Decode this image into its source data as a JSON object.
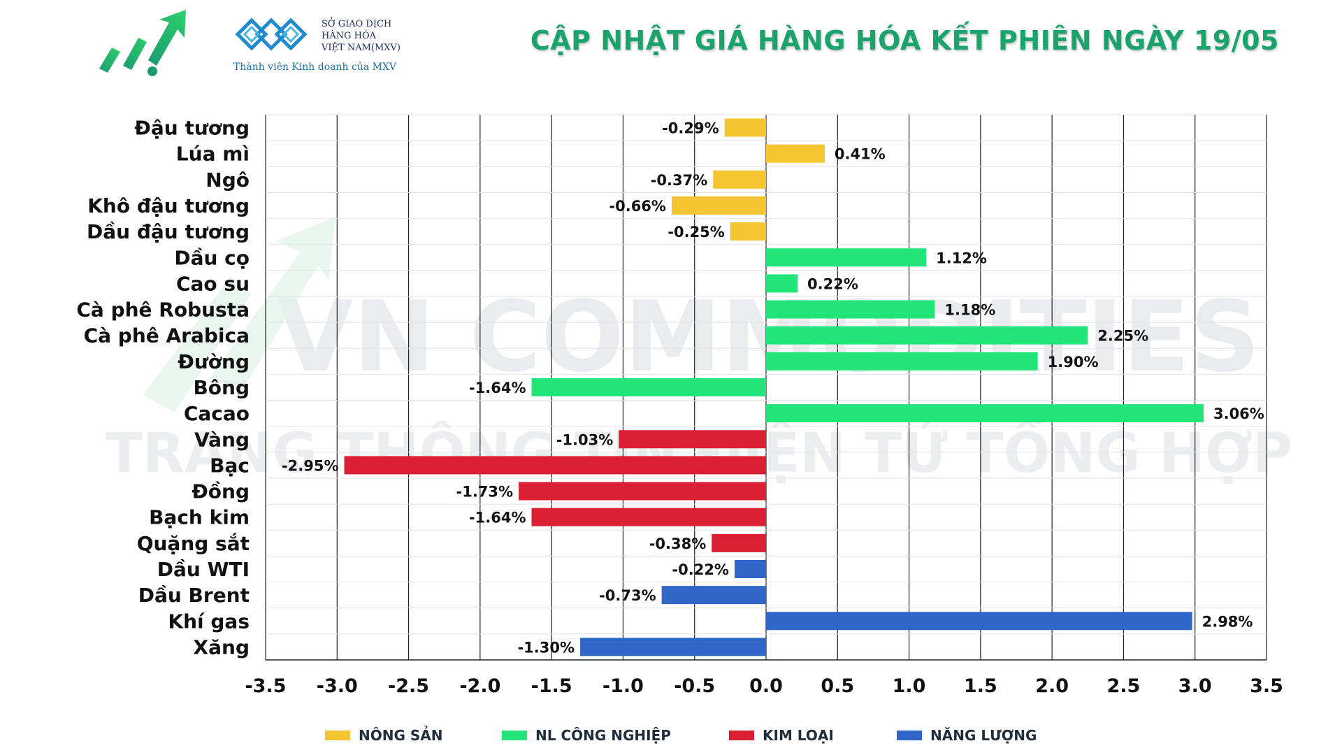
{
  "header": {
    "title": "CẬP NHẬT GIÁ HÀNG HÓA KẾT PHIÊN NGÀY 19/05",
    "mxv_lines": [
      "SỞ GIAO DỊCH",
      "HÀNG HÓA",
      "VIỆT NAM(MXV)"
    ],
    "mxv_tagline": "Thành viên Kinh doanh của MXV"
  },
  "watermark": {
    "line1": "VN COMMODITIES",
    "line2": "TRANG THÔNG TIN ĐIỆN TỬ TỔNG HỢP"
  },
  "colors": {
    "nong_san": "#f5c431",
    "cong_nghiep": "#22e57a",
    "kim_loai": "#da1f33",
    "nang_luong": "#2f66c8",
    "title": "#1aa36a"
  },
  "chart_data": {
    "type": "bar",
    "orientation": "horizontal",
    "categories": [
      "Đậu tương",
      "Lúa mì",
      "Ngô",
      "Khô đậu tương",
      "Dầu đậu tương",
      "Dầu cọ",
      "Cao su",
      "Cà phê Robusta",
      "Cà phê Arabica",
      "Đường",
      "Bông",
      "Cacao",
      "Vàng",
      "Bạc",
      "Đồng",
      "Bạch kim",
      "Quặng sắt",
      "Dầu WTI",
      "Dầu Brent",
      "Khí gas",
      "Xăng"
    ],
    "values": [
      -0.29,
      0.41,
      -0.37,
      -0.66,
      -0.25,
      1.12,
      0.22,
      1.18,
      2.25,
      1.9,
      -1.64,
      3.06,
      -1.03,
      -2.95,
      -1.73,
      -1.64,
      -0.38,
      -0.22,
      -0.73,
      2.98,
      -1.3
    ],
    "labels": [
      "-0.29%",
      "0.41%",
      "-0.37%",
      "-0.66%",
      "-0.25%",
      "1.12%",
      "0.22%",
      "1.18%",
      "2.25%",
      "1.90%",
      "-1.64%",
      "3.06%",
      "-1.03%",
      "-2.95%",
      "-1.73%",
      "-1.64%",
      "-0.38%",
      "-0.22%",
      "-0.73%",
      "2.98%",
      "-1.30%"
    ],
    "groups": [
      "nong_san",
      "nong_san",
      "nong_san",
      "nong_san",
      "nong_san",
      "cong_nghiep",
      "cong_nghiep",
      "cong_nghiep",
      "cong_nghiep",
      "cong_nghiep",
      "cong_nghiep",
      "cong_nghiep",
      "kim_loai",
      "kim_loai",
      "kim_loai",
      "kim_loai",
      "kim_loai",
      "nang_luong",
      "nang_luong",
      "nang_luong",
      "nang_luong"
    ],
    "xlim": [
      -3.5,
      3.5
    ],
    "xticks": [
      "-3.5",
      "-3.0",
      "-2.5",
      "-2.0",
      "-1.5",
      "-1.0",
      "-0.5",
      "0.0",
      "0.5",
      "1.0",
      "1.5",
      "2.0",
      "2.5",
      "3.0",
      "3.5"
    ],
    "grid": true,
    "legend": [
      {
        "key": "nong_san",
        "label": "NÔNG SẢN"
      },
      {
        "key": "cong_nghiep",
        "label": "NL CÔNG NGHIỆP"
      },
      {
        "key": "kim_loai",
        "label": "KIM LOẠI"
      },
      {
        "key": "nang_luong",
        "label": "NĂNG LƯỢNG"
      }
    ],
    "legend_position": "bottom"
  }
}
